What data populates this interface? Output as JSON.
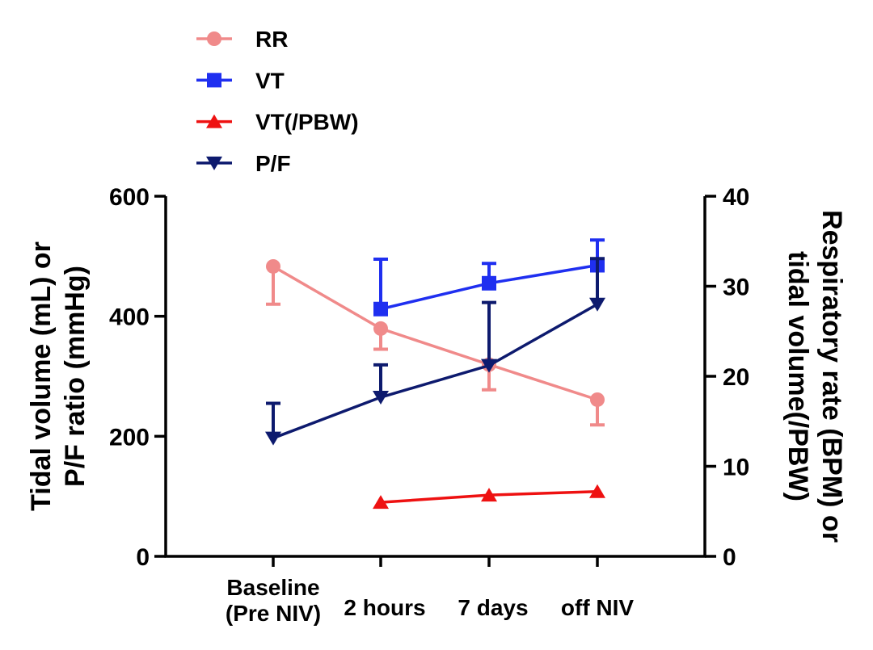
{
  "chart_data": {
    "type": "line",
    "title": "",
    "categories": [
      [
        "Baseline",
        "(Pre NIV)"
      ],
      [
        "2 hours"
      ],
      [
        "7 days"
      ],
      [
        "off NIV"
      ]
    ],
    "ylabel_left": [
      "Tidal volume (mL) or",
      "P/F ratio (mmHg)"
    ],
    "ylabel_right": [
      "Respiratory rate (BPM) or",
      "tidal volume(/PBW)"
    ],
    "ylim_left": [
      0,
      600
    ],
    "ylim_right": [
      0,
      40
    ],
    "yticks_left": [
      "0",
      "200",
      "400",
      "600"
    ],
    "yticks_right": [
      "0",
      "10",
      "20",
      "30",
      "40"
    ],
    "legend_position": "top-left",
    "series": [
      {
        "name": "RR",
        "axis": "right",
        "color": "#f08a8a",
        "marker": "circle",
        "x": [
          0,
          1,
          2,
          3
        ],
        "values": [
          32.2,
          25.3,
          21.3,
          17.4
        ],
        "error": [
          4.2,
          2.3,
          2.8,
          2.8
        ],
        "error_dir": "down"
      },
      {
        "name": "VT",
        "axis": "left",
        "color": "#1f2ff0",
        "marker": "square",
        "x": [
          1,
          2,
          3
        ],
        "values": [
          412,
          455,
          485
        ],
        "error": [
          83,
          33,
          42
        ],
        "error_dir": "up"
      },
      {
        "name": "VT(/PBW)",
        "axis": "right",
        "color": "#ee1111",
        "marker": "triangle-up",
        "x": [
          1,
          2,
          3
        ],
        "values": [
          6.0,
          6.8,
          7.2
        ],
        "error": [
          0,
          0,
          0
        ],
        "error_dir": "none"
      },
      {
        "name": "P/F",
        "axis": "left",
        "color": "#0d1a6e",
        "marker": "triangle-down",
        "x": [
          0,
          1,
          2,
          3
        ],
        "values": [
          197,
          265,
          318,
          420
        ],
        "error": [
          58,
          54,
          105,
          76
        ],
        "error_dir": "up"
      }
    ]
  }
}
